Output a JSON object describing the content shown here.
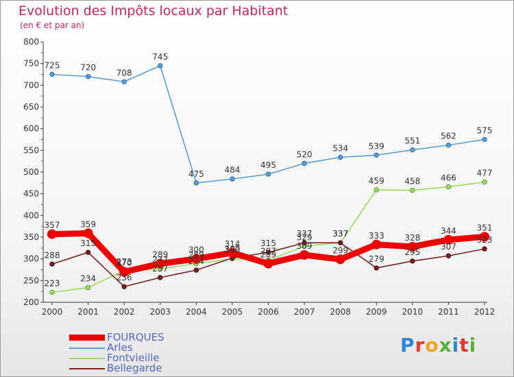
{
  "header": {
    "title": "Evolution des Impôts locaux par Habitant",
    "subtitle": "(en € et par an)"
  },
  "logo": {
    "text": "Proxiti"
  },
  "chart_data": {
    "type": "line",
    "title": "Evolution des Impôts locaux par Habitant",
    "subtitle": "(en € et par an)",
    "xlabel": "",
    "ylabel": "",
    "ylim": [
      200,
      800
    ],
    "yticks": [
      200,
      250,
      300,
      350,
      400,
      450,
      500,
      550,
      600,
      650,
      700,
      750,
      800
    ],
    "grid": false,
    "legend_position": "bottom-left",
    "x": [
      "2000",
      "2001",
      "2002",
      "2003",
      "2004",
      "2005",
      "2006",
      "2007",
      "2008",
      "2009",
      "2010",
      "2011",
      "2012"
    ],
    "series": [
      {
        "name": "FOURQUES",
        "color": "#ee0000",
        "values": [
          357,
          359,
          270,
          289,
          300,
          314,
          289,
          309,
          299,
          333,
          328,
          344,
          351
        ]
      },
      {
        "name": "Arles",
        "color": "#5a9fd4",
        "values": [
          725,
          720,
          708,
          745,
          475,
          484,
          495,
          520,
          534,
          539,
          551,
          562,
          575
        ]
      },
      {
        "name": "Fontvieille",
        "color": "#99dd66",
        "values": [
          223,
          234,
          273,
          277,
          289,
          300,
          297,
          329,
          337,
          459,
          458,
          466,
          477
        ]
      },
      {
        "name": "Bellegarde",
        "color": "#7a2020",
        "values": [
          288,
          315,
          236,
          257,
          274,
          302,
          315,
          337,
          337,
          279,
          295,
          307,
          323
        ]
      }
    ]
  }
}
